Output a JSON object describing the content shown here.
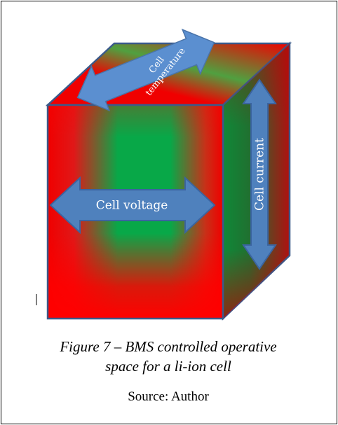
{
  "figure": {
    "labels": {
      "temperature": [
        "Cell",
        "temperature"
      ],
      "voltage": "Cell voltage",
      "current": "Cell current"
    },
    "caption": [
      "Figure 7 – BMS controlled operative",
      "space for a li-ion cell"
    ],
    "source": "Source: Author"
  }
}
